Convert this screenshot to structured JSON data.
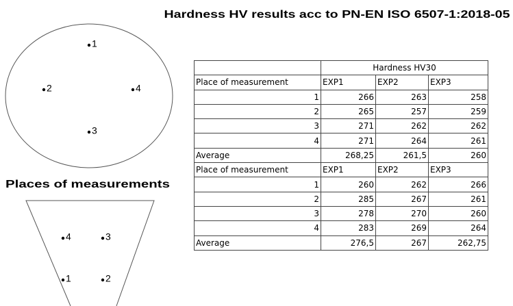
{
  "title": "Hardness HV results acc to PN-EN ISO 6507-1:2018-05",
  "diagram": {
    "circle_points": [
      "1",
      "2",
      "4",
      "3"
    ],
    "caption": "Places of measurements",
    "trapezoid_points": [
      "4",
      "3",
      "1",
      "2"
    ]
  },
  "table": {
    "group_header": "Hardness HV30",
    "sections": [
      {
        "header": [
          "Place of measurement",
          "EXP1",
          "EXP2",
          "EXP3"
        ],
        "rows": [
          [
            "1",
            "266",
            "263",
            "258"
          ],
          [
            "2",
            "265",
            "257",
            "259"
          ],
          [
            "3",
            "271",
            "262",
            "262"
          ],
          [
            "4",
            "271",
            "264",
            "261"
          ]
        ],
        "average": [
          "Average",
          "268,25",
          "261,5",
          "260"
        ]
      },
      {
        "header": [
          "Place of measurement",
          "EXP1",
          "EXP2",
          "EXP3"
        ],
        "rows": [
          [
            "1",
            "260",
            "262",
            "266"
          ],
          [
            "2",
            "285",
            "267",
            "261"
          ],
          [
            "3",
            "278",
            "270",
            "260"
          ],
          [
            "4",
            "283",
            "269",
            "264"
          ]
        ],
        "average": [
          "Average",
          "276,5",
          "267",
          "262,75"
        ]
      }
    ]
  }
}
